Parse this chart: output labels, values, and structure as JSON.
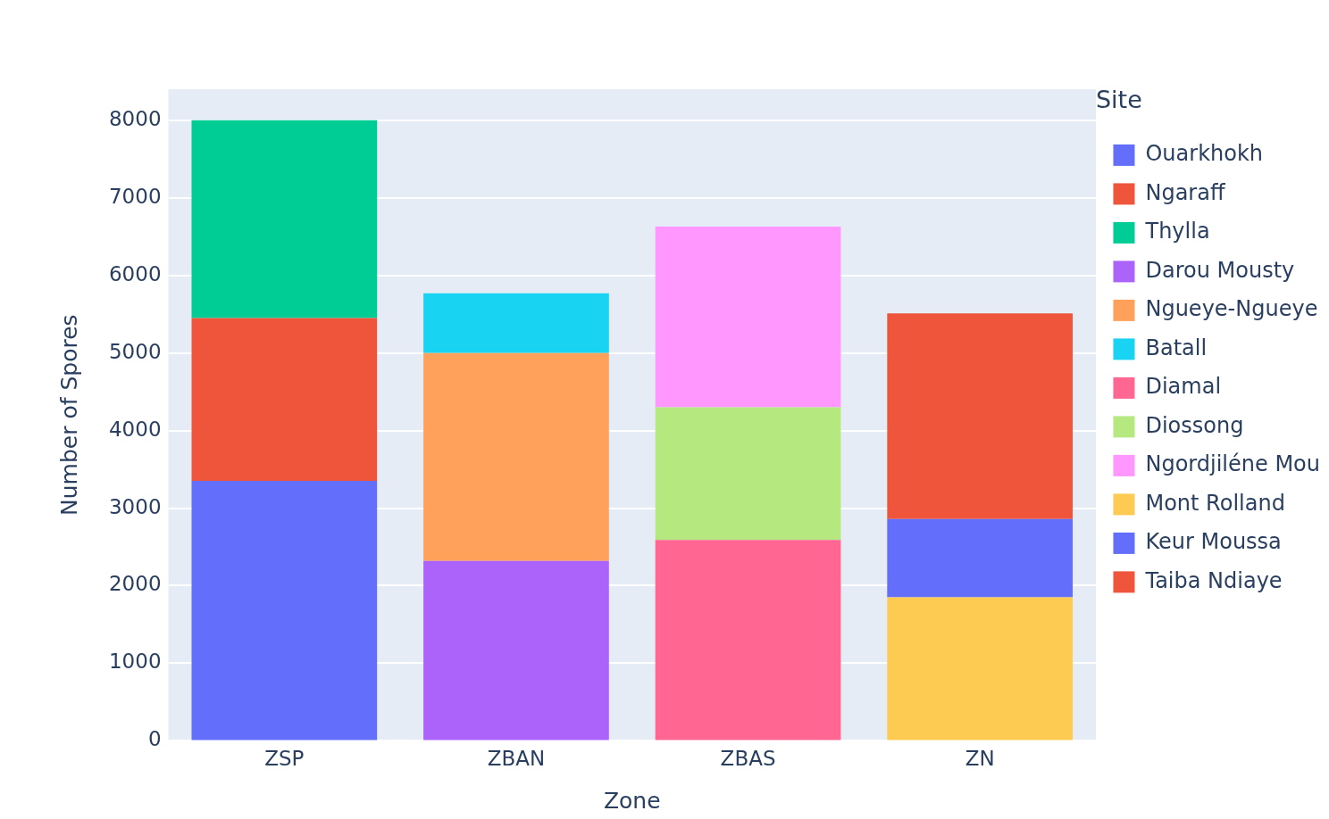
{
  "chart_data": {
    "type": "bar",
    "stacked": true,
    "xlabel": "Zone",
    "ylabel": "Number of Spores",
    "legend_title": "Site",
    "legend": "right",
    "grid": "y",
    "categories": [
      "ZSP",
      "ZBAN",
      "ZBAS",
      "ZN"
    ],
    "ylim": [
      0,
      8400
    ],
    "yticks": [
      0,
      1000,
      2000,
      3000,
      4000,
      5000,
      6000,
      7000,
      8000
    ],
    "series": [
      {
        "name": "Ouarkhokh",
        "color": "#636efa",
        "values": [
          3350,
          null,
          null,
          null
        ]
      },
      {
        "name": "Ngaraff",
        "color": "#ef553b",
        "values": [
          2100,
          null,
          null,
          null
        ]
      },
      {
        "name": "Thylla",
        "color": "#00cc96",
        "values": [
          2550,
          null,
          null,
          null
        ]
      },
      {
        "name": "Darou Mousty",
        "color": "#ab63fa",
        "values": [
          null,
          2320,
          null,
          null
        ]
      },
      {
        "name": "Ngueye-Ngueye",
        "color": "#ffa15a",
        "values": [
          null,
          2680,
          null,
          null
        ]
      },
      {
        "name": "Batall",
        "color": "#19d3f3",
        "values": [
          null,
          770,
          null,
          null
        ]
      },
      {
        "name": "Diamal",
        "color": "#ff6692",
        "values": [
          null,
          null,
          2590,
          null
        ]
      },
      {
        "name": "Diossong",
        "color": "#b6e880",
        "values": [
          null,
          null,
          1710,
          null
        ]
      },
      {
        "name": "Ngordjiléne Mou",
        "color": "#ff97ff",
        "values": [
          null,
          null,
          2330,
          null
        ]
      },
      {
        "name": "Mont Rolland",
        "color": "#fecb52",
        "values": [
          null,
          null,
          null,
          1850
        ]
      },
      {
        "name": "Keur Moussa",
        "color": "#636efa",
        "values": [
          null,
          null,
          null,
          1010
        ]
      },
      {
        "name": "Taiba Ndiaye",
        "color": "#ef553b",
        "values": [
          null,
          null,
          null,
          2650
        ]
      }
    ]
  }
}
